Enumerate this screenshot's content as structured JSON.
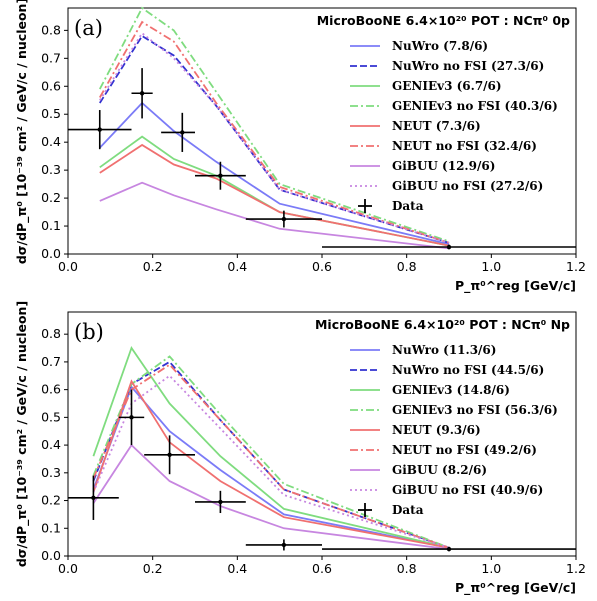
{
  "chart_data": [
    {
      "type": "line",
      "panel_tag": "(a)",
      "title": "MicroBooNE 6.4×10²⁰ POT : NCπ⁰ 0p",
      "xlabel": "P_π⁰^reg [GeV/c]",
      "ylabel": "dσ/dP_π⁰ [10⁻³⁹ cm² / GeV/c / nucleon]",
      "xlim": [
        0.0,
        1.2
      ],
      "ylim": [
        0.0,
        0.88
      ],
      "xticks": [
        "0.0",
        "0.2",
        "0.4",
        "0.6",
        "0.8",
        "1.0",
        "1.2"
      ],
      "yticks": [
        "0.0",
        "0.1",
        "0.2",
        "0.3",
        "0.4",
        "0.5",
        "0.6",
        "0.7",
        "0.8"
      ],
      "legend_position": "top-right",
      "x": [
        0.075,
        0.175,
        0.25,
        0.35,
        0.5,
        0.9
      ],
      "series": [
        {
          "name": "NuWro (7.8/6)",
          "color": "#7b7bf7",
          "style": "solid",
          "values": [
            0.38,
            0.54,
            0.44,
            0.33,
            0.18,
            0.035
          ]
        },
        {
          "name": "NuWro no FSI (27.3/6)",
          "color": "#3232d0",
          "style": "dashed",
          "values": [
            0.54,
            0.78,
            0.71,
            0.53,
            0.23,
            0.04
          ]
        },
        {
          "name": "GENIEv3 (6.7/6)",
          "color": "#7fdc7f",
          "style": "solid",
          "values": [
            0.31,
            0.42,
            0.34,
            0.28,
            0.15,
            0.03
          ]
        },
        {
          "name": "GENIEv3 no FSI (40.3/6)",
          "color": "#7fdc7f",
          "style": "dashdot",
          "values": [
            0.59,
            0.88,
            0.8,
            0.58,
            0.25,
            0.045
          ]
        },
        {
          "name": "NEUT (7.3/6)",
          "color": "#f07070",
          "style": "solid",
          "values": [
            0.29,
            0.39,
            0.32,
            0.27,
            0.15,
            0.03
          ]
        },
        {
          "name": "NEUT no FSI (32.4/6)",
          "color": "#f07070",
          "style": "dashdot",
          "values": [
            0.56,
            0.83,
            0.76,
            0.54,
            0.24,
            0.04
          ]
        },
        {
          "name": "GiBUU (12.9/6)",
          "color": "#c786e0",
          "style": "solid",
          "values": [
            0.19,
            0.255,
            0.21,
            0.16,
            0.09,
            0.02
          ]
        },
        {
          "name": "GiBUU no FSI (27.2/6)",
          "color": "#c786e0",
          "style": "dotted",
          "values": [
            0.55,
            0.79,
            0.7,
            0.53,
            0.23,
            0.04
          ]
        }
      ],
      "data_points": {
        "name": "Data",
        "x": [
          0.075,
          0.175,
          0.27,
          0.36,
          0.51,
          0.9
        ],
        "xerr_low": [
          0.0,
          0.15,
          0.22,
          0.3,
          0.42,
          0.6
        ],
        "xerr_high": [
          0.15,
          0.2,
          0.3,
          0.42,
          0.6,
          1.2
        ],
        "y": [
          0.445,
          0.575,
          0.435,
          0.28,
          0.125,
          0.025
        ],
        "yerr": [
          0.07,
          0.09,
          0.07,
          0.05,
          0.03,
          0.008
        ]
      }
    },
    {
      "type": "line",
      "panel_tag": "(b)",
      "title": "MicroBooNE 6.4×10²⁰ POT : NCπ⁰ Np",
      "xlabel": "P_π⁰^reg [GeV/c]",
      "ylabel": "dσ/dP_π⁰ [10⁻³⁹ cm² / GeV/c / nucleon]",
      "xlim": [
        0.0,
        1.2
      ],
      "ylim": [
        0.0,
        0.88
      ],
      "xticks": [
        "0.0",
        "0.2",
        "0.4",
        "0.6",
        "0.8",
        "1.0",
        "1.2"
      ],
      "yticks": [
        "0.0",
        "0.1",
        "0.2",
        "0.3",
        "0.4",
        "0.5",
        "0.6",
        "0.7",
        "0.8"
      ],
      "legend_position": "top-right",
      "x": [
        0.06,
        0.15,
        0.24,
        0.36,
        0.51,
        0.9
      ],
      "series": [
        {
          "name": "NuWro (11.3/6)",
          "color": "#7b7bf7",
          "style": "solid",
          "values": [
            0.24,
            0.61,
            0.45,
            0.31,
            0.15,
            0.03
          ]
        },
        {
          "name": "NuWro no FSI (44.5/6)",
          "color": "#3232d0",
          "style": "dashed",
          "values": [
            0.27,
            0.62,
            0.7,
            0.49,
            0.24,
            0.03
          ]
        },
        {
          "name": "GENIEv3 (14.8/6)",
          "color": "#7fdc7f",
          "style": "solid",
          "values": [
            0.36,
            0.75,
            0.55,
            0.36,
            0.17,
            0.03
          ]
        },
        {
          "name": "GENIEv3 no FSI (56.3/6)",
          "color": "#7fdc7f",
          "style": "dashdot",
          "values": [
            0.29,
            0.62,
            0.72,
            0.51,
            0.26,
            0.03
          ]
        },
        {
          "name": "NEUT (9.3/6)",
          "color": "#f07070",
          "style": "solid",
          "values": [
            0.23,
            0.63,
            0.41,
            0.27,
            0.14,
            0.03
          ]
        },
        {
          "name": "NEUT no FSI (49.2/6)",
          "color": "#f07070",
          "style": "dashdot",
          "values": [
            0.28,
            0.6,
            0.69,
            0.49,
            0.24,
            0.03
          ]
        },
        {
          "name": "GiBUU (8.2/6)",
          "color": "#c786e0",
          "style": "solid",
          "values": [
            0.19,
            0.4,
            0.27,
            0.18,
            0.1,
            0.025
          ]
        },
        {
          "name": "GiBUU no FSI (40.9/6)",
          "color": "#c786e0",
          "style": "dotted",
          "values": [
            0.23,
            0.55,
            0.65,
            0.46,
            0.22,
            0.03
          ]
        }
      ],
      "data_points": {
        "name": "Data",
        "x": [
          0.06,
          0.15,
          0.24,
          0.36,
          0.51,
          0.9
        ],
        "xerr_low": [
          0.0,
          0.12,
          0.18,
          0.3,
          0.42,
          0.6
        ],
        "xerr_high": [
          0.12,
          0.18,
          0.3,
          0.42,
          0.6,
          1.2
        ],
        "y": [
          0.21,
          0.5,
          0.365,
          0.195,
          0.04,
          0.025
        ],
        "yerr": [
          0.08,
          0.1,
          0.07,
          0.04,
          0.02,
          0.008
        ]
      }
    }
  ]
}
